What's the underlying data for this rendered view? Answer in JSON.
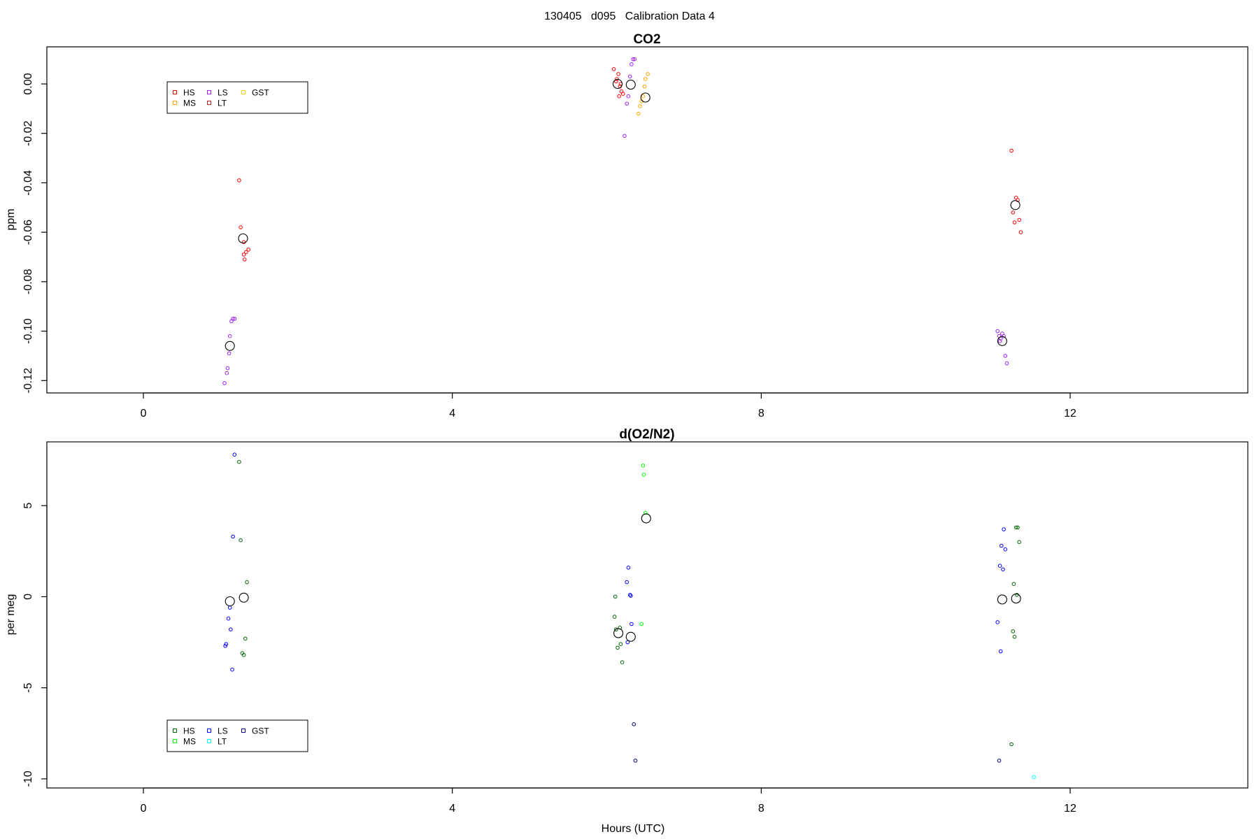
{
  "page_title": "130405   d095   Calibration Data 4",
  "x_axis_label": "Hours (UTC)",
  "chart_data": [
    {
      "type": "scatter",
      "title": "CO2",
      "ylabel": "ppm",
      "xlim": [
        -1.25,
        14.3
      ],
      "ylim": [
        -0.125,
        0.015
      ],
      "x_ticks": [
        0,
        4,
        8,
        12
      ],
      "x_tick_labels": [
        "0",
        "4",
        "8",
        "12"
      ],
      "y_ticks": [
        0.0,
        -0.02,
        -0.04,
        -0.06,
        -0.08,
        -0.1,
        -0.12
      ],
      "y_tick_labels": [
        "0.00",
        "-0.02",
        "-0.04",
        "-0.06",
        "-0.08",
        "-0.10",
        "-0.12"
      ],
      "legend": {
        "placement": "top-left",
        "entries": [
          {
            "label": "HS",
            "color": "#ff0000"
          },
          {
            "label": "MS",
            "color": "#ffa500"
          },
          {
            "label": "LS",
            "color": "#a020f0"
          },
          {
            "label": "LT",
            "color": "#b22222"
          },
          {
            "label": "GST",
            "color": "#ffd700"
          }
        ]
      },
      "series": [
        {
          "name": "HS",
          "color": "#ff0000",
          "points": [
            [
              1.24,
              -0.039
            ],
            [
              1.26,
              -0.058
            ],
            [
              1.3,
              -0.064
            ],
            [
              1.33,
              -0.068
            ],
            [
              1.36,
              -0.067
            ],
            [
              1.3,
              -0.069
            ],
            [
              1.31,
              -0.071
            ],
            [
              6.09,
              0.006
            ],
            [
              6.13,
              0.002
            ],
            [
              6.15,
              0.004
            ],
            [
              6.17,
              -0.001
            ],
            [
              6.19,
              -0.003
            ],
            [
              6.21,
              -0.004
            ],
            [
              6.16,
              -0.005
            ],
            [
              6.12,
              0.001
            ],
            [
              6.18,
              0.0
            ],
            [
              11.24,
              -0.027
            ],
            [
              11.26,
              -0.052
            ],
            [
              11.28,
              -0.056
            ],
            [
              11.3,
              -0.046
            ],
            [
              11.32,
              -0.047
            ],
            [
              11.34,
              -0.055
            ],
            [
              11.36,
              -0.06
            ]
          ]
        },
        {
          "name": "LS",
          "color": "#a020f0",
          "points": [
            [
              1.05,
              -0.121
            ],
            [
              1.08,
              -0.117
            ],
            [
              1.09,
              -0.115
            ],
            [
              1.11,
              -0.109
            ],
            [
              1.12,
              -0.102
            ],
            [
              1.14,
              -0.096
            ],
            [
              1.16,
              -0.095
            ],
            [
              1.18,
              -0.095
            ],
            [
              6.23,
              -0.021
            ],
            [
              6.26,
              -0.008
            ],
            [
              6.28,
              -0.005
            ],
            [
              6.3,
              0.003
            ],
            [
              6.32,
              0.008
            ],
            [
              6.34,
              0.01
            ],
            [
              6.36,
              0.01
            ],
            [
              11.06,
              -0.1
            ],
            [
              11.08,
              -0.102
            ],
            [
              11.1,
              -0.103
            ],
            [
              11.12,
              -0.101
            ],
            [
              11.14,
              -0.102
            ],
            [
              11.16,
              -0.11
            ],
            [
              11.18,
              -0.113
            ],
            [
              11.09,
              -0.104
            ]
          ]
        },
        {
          "name": "MS",
          "color": "#ffa500",
          "points": [
            [
              6.41,
              -0.012
            ],
            [
              6.43,
              -0.009
            ],
            [
              6.45,
              -0.007
            ],
            [
              6.47,
              -0.005
            ],
            [
              6.49,
              -0.001
            ],
            [
              6.5,
              0.002
            ],
            [
              6.53,
              0.004
            ]
          ]
        }
      ],
      "means": [
        [
          1.12,
          -0.106
        ],
        [
          1.29,
          -0.0625
        ],
        [
          6.14,
          0.0
        ],
        [
          6.31,
          -0.0003
        ],
        [
          6.5,
          -0.0055
        ],
        [
          11.12,
          -0.104
        ],
        [
          11.29,
          -0.049
        ]
      ]
    },
    {
      "type": "scatter",
      "title": "d(O2/N2)",
      "ylabel": "per meg",
      "xlim": [
        -1.25,
        14.3
      ],
      "ylim": [
        -10.5,
        8.5
      ],
      "x_ticks": [
        0,
        4,
        8,
        12
      ],
      "x_tick_labels": [
        "0",
        "4",
        "8",
        "12"
      ],
      "y_ticks": [
        5,
        0,
        -5,
        -10
      ],
      "y_tick_labels": [
        "5",
        "0",
        "-5",
        "-10"
      ],
      "legend": {
        "placement": "bottom-left",
        "entries": [
          {
            "label": "HS",
            "color": "#006400"
          },
          {
            "label": "MS",
            "color": "#00ff00"
          },
          {
            "label": "LS",
            "color": "#0000ff"
          },
          {
            "label": "LT",
            "color": "#00ffff"
          },
          {
            "label": "GST",
            "color": "#00008b"
          }
        ]
      },
      "series": [
        {
          "name": "HS",
          "color": "#006400",
          "points": [
            [
              1.24,
              7.4
            ],
            [
              1.26,
              3.1
            ],
            [
              1.34,
              0.8
            ],
            [
              1.32,
              -2.3
            ],
            [
              1.28,
              -3.1
            ],
            [
              1.3,
              -3.2
            ],
            [
              6.11,
              0.0
            ],
            [
              6.1,
              -1.1
            ],
            [
              6.12,
              -1.8
            ],
            [
              6.14,
              -2.8
            ],
            [
              6.17,
              -1.7
            ],
            [
              6.18,
              -2.6
            ],
            [
              6.2,
              -3.6
            ],
            [
              11.24,
              -8.1
            ],
            [
              11.26,
              -1.9
            ],
            [
              11.28,
              -2.2
            ],
            [
              11.27,
              0.7
            ],
            [
              11.3,
              3.8
            ],
            [
              11.32,
              3.8
            ],
            [
              11.34,
              3.0
            ],
            [
              11.31,
              0.1
            ]
          ]
        },
        {
          "name": "MS",
          "color": "#00ff00",
          "points": [
            [
              6.47,
              7.2
            ],
            [
              6.48,
              6.7
            ],
            [
              6.5,
              4.6
            ],
            [
              6.45,
              -1.5
            ]
          ]
        },
        {
          "name": "LS",
          "color": "#0000ff",
          "points": [
            [
              1.18,
              7.8
            ],
            [
              1.16,
              3.3
            ],
            [
              1.12,
              -0.6
            ],
            [
              1.1,
              -1.2
            ],
            [
              1.13,
              -1.8
            ],
            [
              1.06,
              -2.7
            ],
            [
              1.07,
              -2.6
            ],
            [
              1.15,
              -4.0
            ],
            [
              6.26,
              0.8
            ],
            [
              6.28,
              1.6
            ],
            [
              6.3,
              0.1
            ],
            [
              6.31,
              0.05
            ],
            [
              6.32,
              -1.5
            ],
            [
              6.27,
              -2.5
            ],
            [
              11.06,
              -1.4
            ],
            [
              11.09,
              1.7
            ],
            [
              11.11,
              2.8
            ],
            [
              11.14,
              3.7
            ],
            [
              11.13,
              1.5
            ],
            [
              11.16,
              2.6
            ],
            [
              11.1,
              -3.0
            ]
          ]
        },
        {
          "name": "LT",
          "color": "#00ffff",
          "points": [
            [
              11.53,
              -9.9
            ]
          ]
        },
        {
          "name": "GST",
          "color": "#00008b",
          "points": [
            [
              6.35,
              -7.0
            ],
            [
              6.37,
              -9.0
            ],
            [
              11.08,
              -9.0
            ]
          ]
        }
      ],
      "means": [
        [
          1.12,
          -0.25
        ],
        [
          1.3,
          -0.05
        ],
        [
          6.15,
          -2.0
        ],
        [
          6.31,
          -2.2
        ],
        [
          6.51,
          4.3
        ],
        [
          11.12,
          -0.15
        ],
        [
          11.3,
          -0.1
        ]
      ]
    }
  ]
}
